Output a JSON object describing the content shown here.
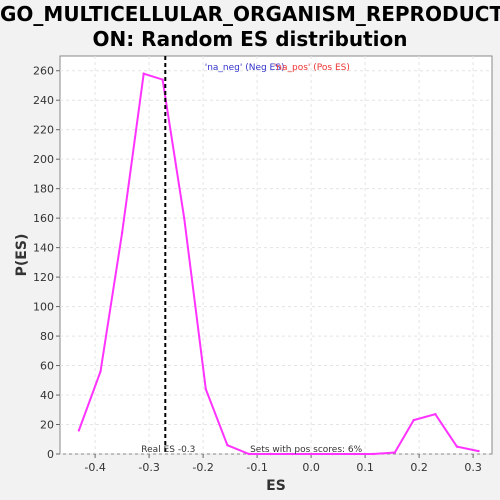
{
  "title_line1": "GO_MULTICELLULAR_ORGANISM_REPRODUCTI",
  "title_line2": "ON: Random ES distribution",
  "chart_data": {
    "type": "line",
    "xlabel": "ES",
    "ylabel": "P(ES)",
    "xlim": [
      -0.465,
      0.335
    ],
    "ylim": [
      0,
      270
    ],
    "xticks": [
      "-0.4",
      "-0.3",
      "-0.2",
      "-0.1",
      "0.0",
      "0.1",
      "0.2",
      "0.3"
    ],
    "yticks": [
      "0",
      "20",
      "40",
      "60",
      "80",
      "100",
      "120",
      "140",
      "160",
      "180",
      "200",
      "220",
      "240",
      "260"
    ],
    "grid": true,
    "series": [
      {
        "color": "#ff33ff",
        "x": [
          -0.43,
          -0.39,
          -0.35,
          -0.31,
          -0.275,
          -0.235,
          -0.195,
          -0.155,
          -0.115,
          -0.075,
          -0.035,
          0.0,
          0.04,
          0.08,
          0.115,
          0.155,
          0.19,
          0.23,
          0.27,
          0.31
        ],
        "y": [
          16,
          56,
          150,
          258,
          254,
          160,
          44,
          6,
          0,
          0,
          0,
          0,
          0,
          0,
          0,
          1,
          23,
          27,
          5,
          2
        ]
      }
    ],
    "legend": {
      "neg_text": "'na_neg' (Neg ES)",
      "neg_color": "#3333cc",
      "pos_text": "'na_pos' (Pos ES)",
      "pos_color": "#ee3333",
      "placement": "top-center"
    },
    "real_es": {
      "value": -0.27,
      "label": "Real ES -0.3"
    },
    "pos_scores_note": "Sets with pos scores: 6%"
  }
}
